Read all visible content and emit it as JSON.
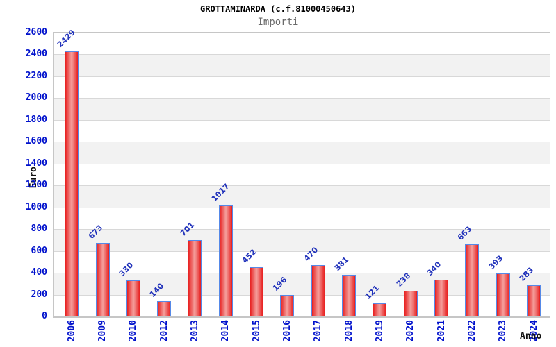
{
  "chart_data": {
    "type": "bar",
    "title": "GROTTAMINARDA (c.f.81000450643)",
    "subtitle": "Importi",
    "xlabel": "Anno",
    "ylabel": "Euro",
    "categories": [
      "2006",
      "2009",
      "2010",
      "2012",
      "2013",
      "2014",
      "2015",
      "2016",
      "2017",
      "2018",
      "2019",
      "2020",
      "2021",
      "2022",
      "2023",
      "2024"
    ],
    "values": [
      2429,
      673,
      330,
      140,
      701,
      1017,
      452,
      196,
      470,
      381,
      121,
      238,
      340,
      663,
      393,
      283
    ],
    "ylim": [
      0,
      2600
    ],
    "ytick_step": 200,
    "grid": true,
    "legend": null,
    "colors": {
      "bar_fill_edge": "#e81f1f",
      "bar_fill_center": "#f5a09d",
      "bar_border": "#5589e8",
      "axis_tick_label": "#0011cc",
      "value_label": "#2233bb",
      "band_alt": "#f2f2f2",
      "band_main": "#ffffff",
      "gridline": "#d8d8d8",
      "plot_border": "#c6c6c6",
      "title_color": "#000000",
      "subtitle_color": "#6a6a6a"
    }
  }
}
